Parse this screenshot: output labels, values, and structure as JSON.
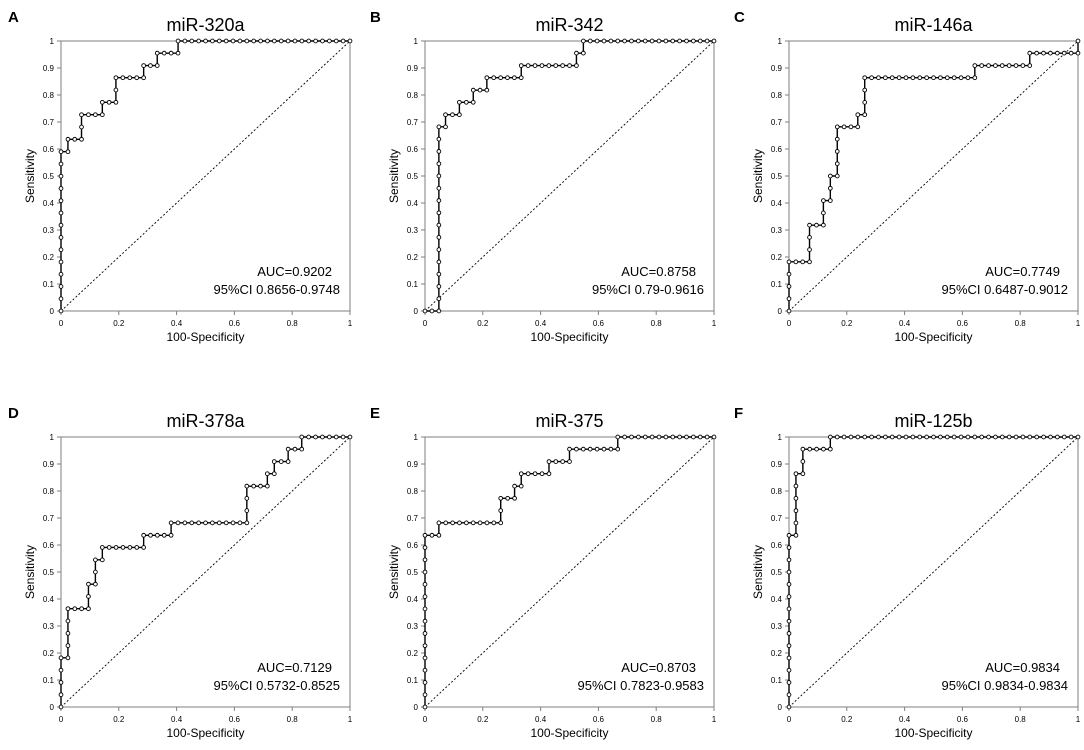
{
  "chart_data": [
    {
      "type": "line",
      "panel_letter": "A",
      "title": "miR-320a",
      "xlabel": "100-Specificity",
      "ylabel": "Sensitivity",
      "xlim": [
        0,
        1
      ],
      "ylim": [
        0,
        1
      ],
      "x_ticks": [
        "0",
        "0.2",
        "0.4",
        "0.6",
        "0.8",
        "1"
      ],
      "y_ticks": [
        "0",
        "0.1",
        "0.2",
        "0.3",
        "0.4",
        "0.5",
        "0.6",
        "0.7",
        "0.8",
        "0.9",
        "1"
      ],
      "auc_text": "AUC=0.9202",
      "ci_text": "95%CI 0.8656-0.9748",
      "reference_line": "diagonal",
      "roc_steps": [
        [
          0,
          0
        ],
        [
          0,
          0.59
        ],
        [
          0.024,
          0.59
        ],
        [
          0.024,
          0.636
        ],
        [
          0.071,
          0.636
        ],
        [
          0.071,
          0.727
        ],
        [
          0.143,
          0.727
        ],
        [
          0.143,
          0.773
        ],
        [
          0.19,
          0.773
        ],
        [
          0.19,
          0.864
        ],
        [
          0.286,
          0.864
        ],
        [
          0.286,
          0.909
        ],
        [
          0.333,
          0.909
        ],
        [
          0.333,
          0.955
        ],
        [
          0.405,
          0.955
        ],
        [
          0.405,
          1
        ],
        [
          1,
          1
        ]
      ]
    },
    {
      "type": "line",
      "panel_letter": "B",
      "title": "miR-342",
      "xlabel": "100-Specificity",
      "ylabel": "Sensitivity",
      "xlim": [
        0,
        1
      ],
      "ylim": [
        0,
        1
      ],
      "x_ticks": [
        "0",
        "0.2",
        "0.4",
        "0.6",
        "0.8",
        "1"
      ],
      "y_ticks": [
        "0",
        "0.1",
        "0.2",
        "0.3",
        "0.4",
        "0.5",
        "0.6",
        "0.7",
        "0.8",
        "0.9",
        "1"
      ],
      "auc_text": "AUC=0.8758",
      "ci_text": "95%CI 0.79-0.9616",
      "reference_line": "diagonal",
      "roc_steps": [
        [
          0,
          0
        ],
        [
          0.048,
          0
        ],
        [
          0.048,
          0.682
        ],
        [
          0.071,
          0.682
        ],
        [
          0.071,
          0.727
        ],
        [
          0.119,
          0.727
        ],
        [
          0.119,
          0.773
        ],
        [
          0.167,
          0.773
        ],
        [
          0.167,
          0.818
        ],
        [
          0.214,
          0.818
        ],
        [
          0.214,
          0.864
        ],
        [
          0.333,
          0.864
        ],
        [
          0.333,
          0.909
        ],
        [
          0.524,
          0.909
        ],
        [
          0.524,
          0.955
        ],
        [
          0.548,
          0.955
        ],
        [
          0.548,
          1
        ],
        [
          1,
          1
        ]
      ]
    },
    {
      "type": "line",
      "panel_letter": "C",
      "title": "miR-146a",
      "xlabel": "100-Specificity",
      "ylabel": "Sensitivity",
      "xlim": [
        0,
        1
      ],
      "ylim": [
        0,
        1
      ],
      "x_ticks": [
        "0",
        "0.2",
        "0.4",
        "0.6",
        "0.8",
        "1"
      ],
      "y_ticks": [
        "0",
        "0.1",
        "0.2",
        "0.3",
        "0.4",
        "0.5",
        "0.6",
        "0.7",
        "0.8",
        "0.9",
        "1"
      ],
      "auc_text": "AUC=0.7749",
      "ci_text": "95%CI 0.6487-0.9012",
      "reference_line": "diagonal",
      "roc_steps": [
        [
          0,
          0
        ],
        [
          0,
          0.182
        ],
        [
          0.071,
          0.182
        ],
        [
          0.071,
          0.318
        ],
        [
          0.119,
          0.318
        ],
        [
          0.119,
          0.409
        ],
        [
          0.143,
          0.409
        ],
        [
          0.143,
          0.5
        ],
        [
          0.167,
          0.5
        ],
        [
          0.167,
          0.682
        ],
        [
          0.238,
          0.682
        ],
        [
          0.238,
          0.727
        ],
        [
          0.262,
          0.727
        ],
        [
          0.262,
          0.864
        ],
        [
          0.643,
          0.864
        ],
        [
          0.643,
          0.909
        ],
        [
          0.833,
          0.909
        ],
        [
          0.833,
          0.955
        ],
        [
          1,
          0.955
        ],
        [
          1,
          1
        ]
      ]
    },
    {
      "type": "line",
      "panel_letter": "D",
      "title": "miR-378a",
      "xlabel": "100-Specificity",
      "ylabel": "Sensitivity",
      "xlim": [
        0,
        1
      ],
      "ylim": [
        0,
        1
      ],
      "x_ticks": [
        "0",
        "0.2",
        "0.4",
        "0.6",
        "0.8",
        "1"
      ],
      "y_ticks": [
        "0",
        "0.1",
        "0.2",
        "0.3",
        "0.4",
        "0.5",
        "0.6",
        "0.7",
        "0.8",
        "0.9",
        "1"
      ],
      "auc_text": "AUC=0.7129",
      "ci_text": "95%CI 0.5732-0.8525",
      "reference_line": "diagonal",
      "roc_steps": [
        [
          0,
          0
        ],
        [
          0,
          0.182
        ],
        [
          0.024,
          0.182
        ],
        [
          0.024,
          0.364
        ],
        [
          0.095,
          0.364
        ],
        [
          0.095,
          0.455
        ],
        [
          0.119,
          0.455
        ],
        [
          0.119,
          0.545
        ],
        [
          0.143,
          0.545
        ],
        [
          0.143,
          0.591
        ],
        [
          0.286,
          0.591
        ],
        [
          0.286,
          0.636
        ],
        [
          0.381,
          0.636
        ],
        [
          0.381,
          0.682
        ],
        [
          0.643,
          0.682
        ],
        [
          0.643,
          0.818
        ],
        [
          0.714,
          0.818
        ],
        [
          0.714,
          0.864
        ],
        [
          0.738,
          0.864
        ],
        [
          0.738,
          0.909
        ],
        [
          0.786,
          0.909
        ],
        [
          0.786,
          0.955
        ],
        [
          0.833,
          0.955
        ],
        [
          0.833,
          1
        ],
        [
          1,
          1
        ]
      ]
    },
    {
      "type": "line",
      "panel_letter": "E",
      "title": "miR-375",
      "xlabel": "100-Specificity",
      "ylabel": "Sensitivity",
      "xlim": [
        0,
        1
      ],
      "ylim": [
        0,
        1
      ],
      "x_ticks": [
        "0",
        "0.2",
        "0.4",
        "0.6",
        "0.8",
        "1"
      ],
      "y_ticks": [
        "0",
        "0.1",
        "0.2",
        "0.3",
        "0.4",
        "0.5",
        "0.6",
        "0.7",
        "0.8",
        "0.9",
        "1"
      ],
      "auc_text": "AUC=0.8703",
      "ci_text": "95%CI 0.7823-0.9583",
      "reference_line": "diagonal",
      "roc_steps": [
        [
          0,
          0
        ],
        [
          0,
          0.636
        ],
        [
          0.048,
          0.636
        ],
        [
          0.048,
          0.682
        ],
        [
          0.262,
          0.682
        ],
        [
          0.262,
          0.773
        ],
        [
          0.31,
          0.773
        ],
        [
          0.31,
          0.818
        ],
        [
          0.333,
          0.818
        ],
        [
          0.333,
          0.864
        ],
        [
          0.429,
          0.864
        ],
        [
          0.429,
          0.909
        ],
        [
          0.5,
          0.909
        ],
        [
          0.5,
          0.955
        ],
        [
          0.667,
          0.955
        ],
        [
          0.667,
          1
        ],
        [
          1,
          1
        ]
      ]
    },
    {
      "type": "line",
      "panel_letter": "F",
      "title": "miR-125b",
      "xlabel": "100-Specificity",
      "ylabel": "Sensitivity",
      "xlim": [
        0,
        1
      ],
      "ylim": [
        0,
        1
      ],
      "x_ticks": [
        "0",
        "0.2",
        "0.4",
        "0.6",
        "0.8",
        "1"
      ],
      "y_ticks": [
        "0",
        "0.1",
        "0.2",
        "0.3",
        "0.4",
        "0.5",
        "0.6",
        "0.7",
        "0.8",
        "0.9",
        "1"
      ],
      "auc_text": "AUC=0.9834",
      "ci_text": "95%CI 0.9834-0.9834",
      "reference_line": "diagonal",
      "roc_steps": [
        [
          0,
          0
        ],
        [
          0,
          0.636
        ],
        [
          0.024,
          0.636
        ],
        [
          0.024,
          0.864
        ],
        [
          0.048,
          0.864
        ],
        [
          0.048,
          0.955
        ],
        [
          0.143,
          0.955
        ],
        [
          0.143,
          1
        ],
        [
          1,
          1
        ]
      ]
    }
  ],
  "style": {
    "line_color": "#000000",
    "marker_fill": "#ffffff",
    "axis_color": "#7f7f7f",
    "text_color": "#000000"
  }
}
